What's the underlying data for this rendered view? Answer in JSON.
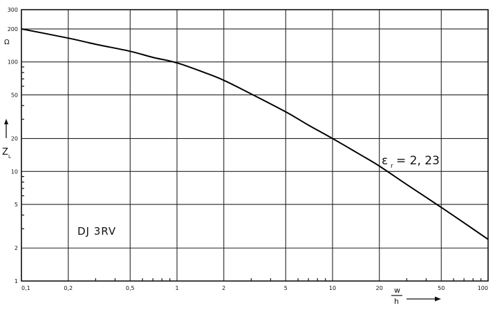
{
  "chart_data": {
    "type": "line",
    "x_scale": "log",
    "y_scale": "log",
    "xlim": [
      0.1,
      100
    ],
    "ylim": [
      1,
      300
    ],
    "grid": true,
    "x_ticks": [
      {
        "value": 0.1,
        "label": "0,1"
      },
      {
        "value": 0.2,
        "label": "0,2"
      },
      {
        "value": 0.5,
        "label": "0,5"
      },
      {
        "value": 1,
        "label": "1"
      },
      {
        "value": 2,
        "label": "2"
      },
      {
        "value": 5,
        "label": "5"
      },
      {
        "value": 10,
        "label": "10"
      },
      {
        "value": 20,
        "label": "20"
      },
      {
        "value": 50,
        "label": "50"
      },
      {
        "value": 100,
        "label": "100"
      }
    ],
    "y_ticks": [
      {
        "value": 1,
        "label": "1"
      },
      {
        "value": 2,
        "label": "2"
      },
      {
        "value": 5,
        "label": "5"
      },
      {
        "value": 10,
        "label": "10"
      },
      {
        "value": 20,
        "label": "20"
      },
      {
        "value": 50,
        "label": "50"
      },
      {
        "value": 100,
        "label": "100"
      },
      {
        "value": 200,
        "label": "200"
      },
      {
        "value": 300,
        "label": "300"
      }
    ],
    "y_unit": "Ω",
    "ylabel": "Z",
    "ylabel_sub": "L",
    "xlabel_num": "w",
    "xlabel_den": "h",
    "annotation": "ε",
    "annotation_sub": "r",
    "annotation_value": "= 2, 23",
    "stamp": "DJ 3RV",
    "series": [
      {
        "x": [
          0.1,
          0.2,
          0.3,
          0.5,
          0.7,
          1,
          1.5,
          2,
          3,
          5,
          7,
          10,
          15,
          20,
          30,
          50,
          70,
          100
        ],
        "y": [
          200,
          165,
          145,
          125,
          110,
          98,
          80,
          68,
          51,
          35,
          26.5,
          20,
          14.3,
          11.2,
          7.6,
          4.7,
          3.4,
          2.4
        ]
      }
    ]
  },
  "colors": {
    "background": "#ffffff",
    "ink": "#111111"
  }
}
